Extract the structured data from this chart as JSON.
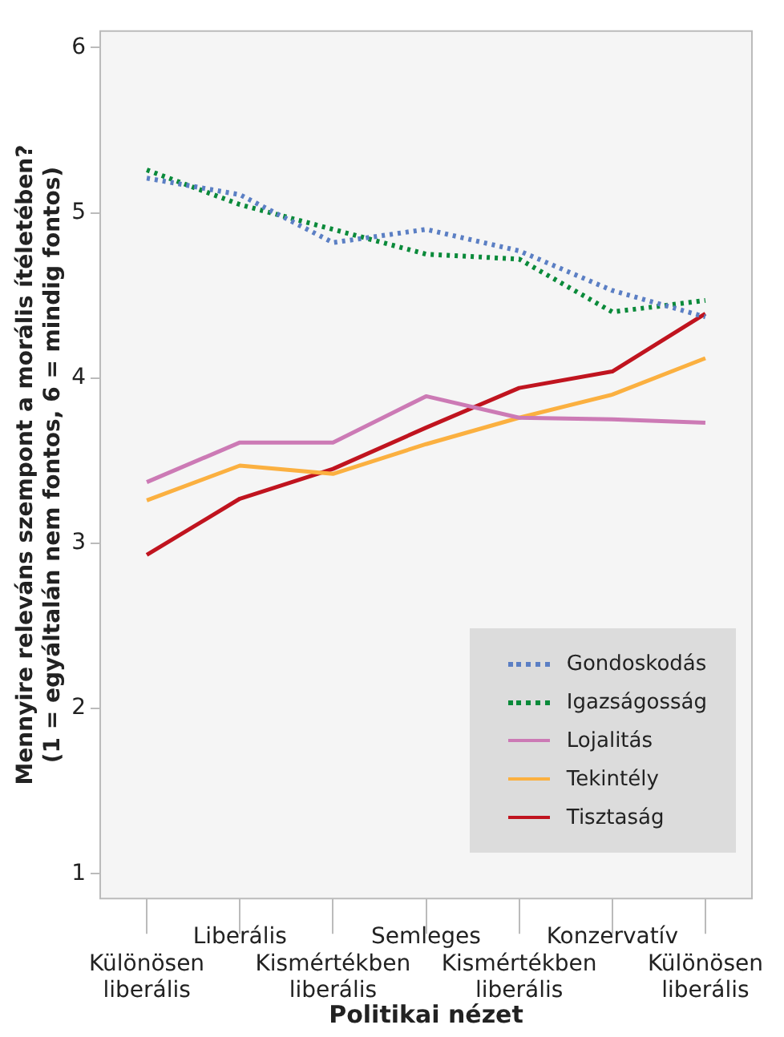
{
  "chart_data": {
    "type": "line",
    "xlabel": "Politikai nézet",
    "ylabel": "Mennyire releváns szempont a morális ítéletében? (1 = egyáltalán nem fontos, 6 = mindig fontos)",
    "categories": [
      "Különösen liberális",
      "Liberális",
      "Kismértékben liberális",
      "Semleges",
      "Kismértékben liberális",
      "Konzervatív",
      "Különösen liberális"
    ],
    "series": [
      {
        "name": "Gondoskodás",
        "color": "#5b7fc4",
        "line_style": "dotted",
        "values": [
          5.21,
          5.11,
          4.82,
          4.9,
          4.77,
          4.53,
          4.37
        ]
      },
      {
        "name": "Igazságosság",
        "color": "#0a8a3a",
        "line_style": "dotted",
        "values": [
          5.26,
          5.05,
          4.9,
          4.75,
          4.72,
          4.4,
          4.47
        ]
      },
      {
        "name": "Lojalitás",
        "color": "#cc7ab5",
        "line_style": "solid",
        "values": [
          3.37,
          3.61,
          3.61,
          3.89,
          3.76,
          3.75,
          3.73
        ]
      },
      {
        "name": "Tekintély",
        "color": "#fbb040",
        "line_style": "solid",
        "values": [
          3.26,
          3.47,
          3.42,
          3.6,
          3.76,
          3.9,
          4.12
        ]
      },
      {
        "name": "Tisztaság",
        "color": "#c0141f",
        "line_style": "solid",
        "values": [
          2.93,
          3.27,
          3.45,
          3.7,
          3.94,
          4.04,
          4.39
        ]
      }
    ],
    "ylim": [
      0.85,
      6.1
    ],
    "yticks": [
      1,
      2,
      3,
      4,
      5,
      6
    ],
    "grid": false,
    "legend": "bottom right",
    "marker": "none"
  }
}
